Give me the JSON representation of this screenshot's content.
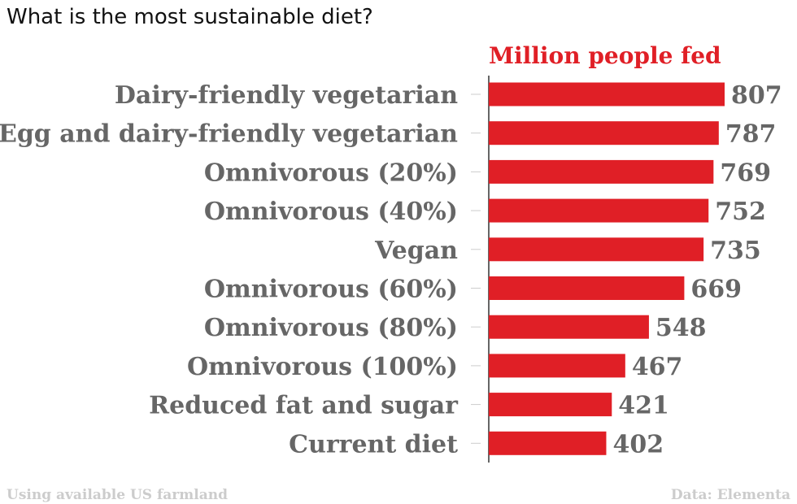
{
  "chart_data": {
    "type": "bar",
    "orientation": "horizontal",
    "title": "What is the most sustainable diet?",
    "series_title": "Million people fed",
    "categories": [
      "Dairy-friendly vegetarian",
      "Egg and dairy-friendly vegetarian",
      "Omnivorous (20%)",
      "Omnivorous (40%)",
      "Vegan",
      "Omnivorous (60%)",
      "Omnivorous (80%)",
      "Omnivorous (100%)",
      "Reduced fat and sugar",
      "Current diet"
    ],
    "values": [
      807,
      787,
      769,
      752,
      735,
      669,
      548,
      467,
      421,
      402
    ],
    "xlim": [
      0,
      807
    ],
    "bar_color": "#e01f26",
    "label_color": "#666666",
    "footer_left": "Using available US farmland",
    "footer_right": "Data: Elementa"
  }
}
